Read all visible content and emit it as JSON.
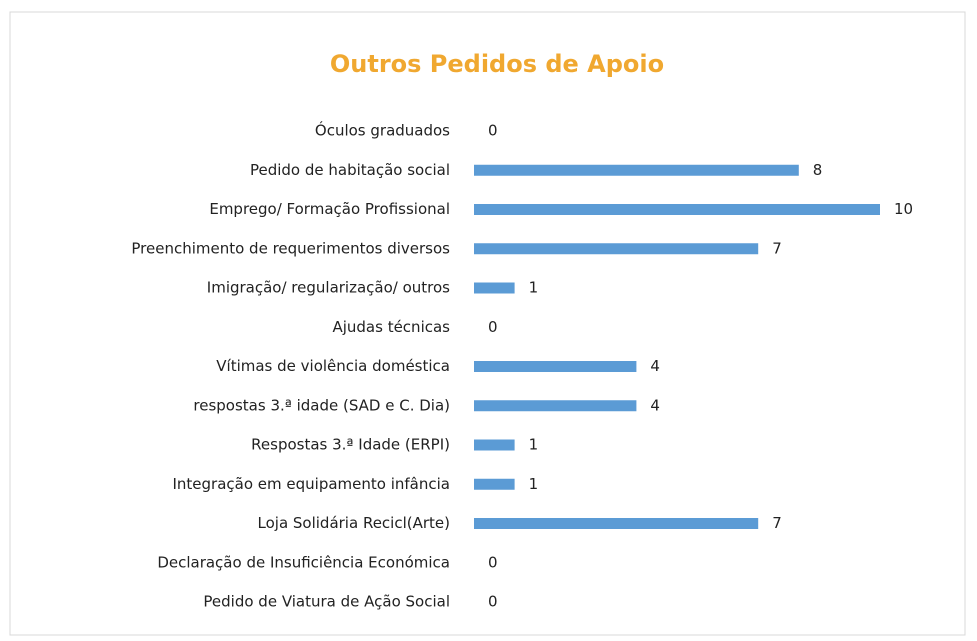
{
  "chart_data": {
    "type": "barh",
    "title": "Outros Pedidos de Apoio",
    "categories": [
      "Óculos graduados",
      "Pedido de habitação social",
      "Emprego/ Formação Profissional",
      "Preenchimento de requerimentos diversos",
      "Imigração/ regularização/ outros",
      "Ajudas técnicas",
      "Vítimas de violência doméstica",
      "respostas 3.ª idade (SAD e C. Dia)",
      "Respostas 3.ª Idade (ERPI)",
      "Integração em equipamento infância",
      "Loja Solidária Recicl(Arte)",
      "Declaração de Insuficiência Económica",
      "Pedido de Viatura de Ação Social"
    ],
    "values": [
      0,
      8,
      10,
      7,
      1,
      0,
      4,
      4,
      1,
      1,
      7,
      0,
      0
    ],
    "color": "#5b9bd5",
    "title_color": "#f0a830",
    "xlim": [
      0,
      10
    ]
  }
}
